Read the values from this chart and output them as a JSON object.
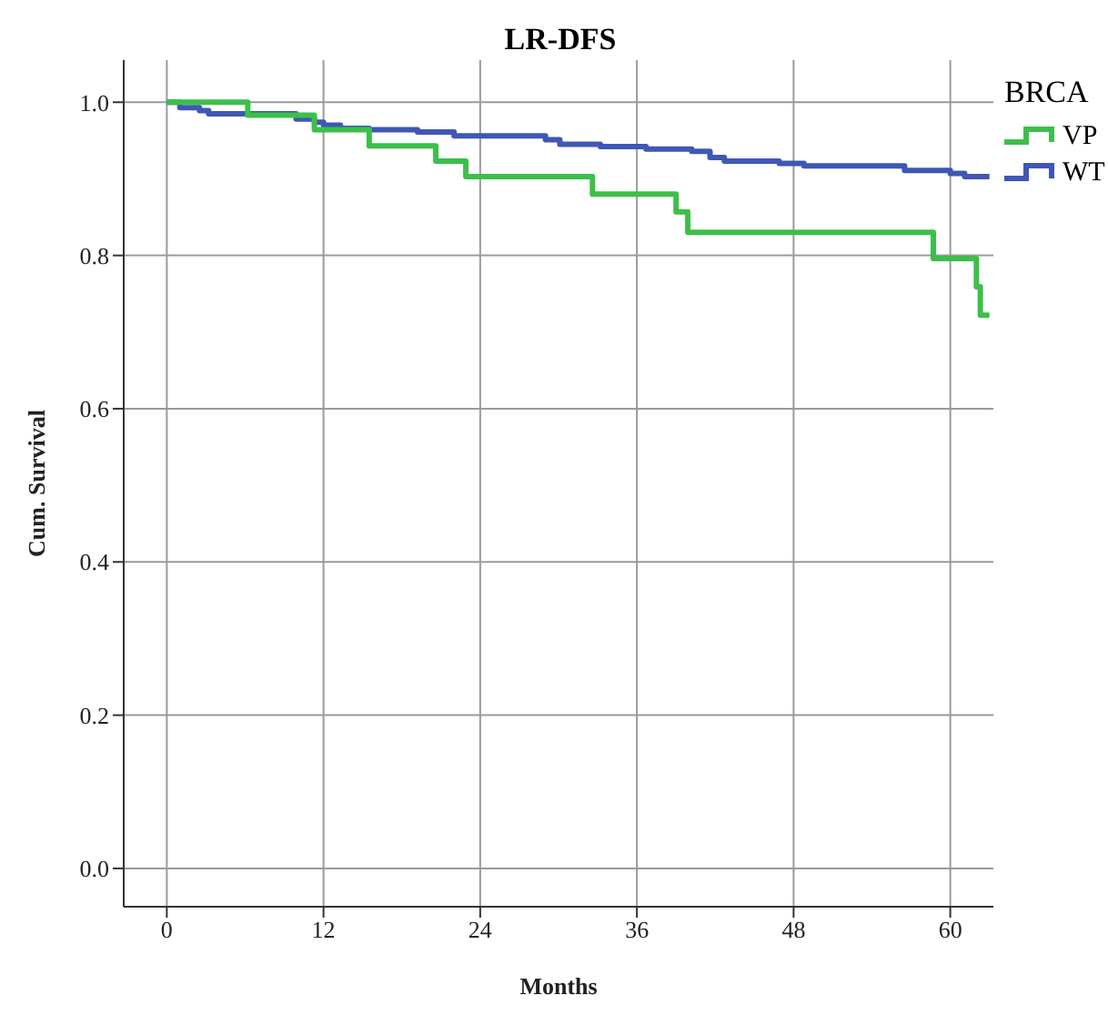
{
  "chart_data": {
    "type": "step",
    "title": "LR-DFS",
    "xlabel": "Months",
    "ylabel": "Cum. Survival",
    "legend_title": "BRCA",
    "legend": "top right",
    "grid": true,
    "line_style": "solid",
    "marker": "none",
    "xlim": [
      -3.3,
      63.3
    ],
    "xticks": [
      0,
      12,
      24,
      36,
      48,
      60
    ],
    "ylim": [
      -0.05,
      1.055
    ],
    "yticks": [
      {
        "value": 0,
        "label": "0.0"
      },
      {
        "value": 0.2,
        "label": "0.2"
      },
      {
        "value": 0.4,
        "label": "0.4"
      },
      {
        "value": 0.6,
        "label": "0.6"
      },
      {
        "value": 0.8,
        "label": "0.8"
      },
      {
        "value": 1,
        "label": "1.0"
      }
    ],
    "series": [
      {
        "name": "WT",
        "color": "#3f57b5",
        "x": [
          0,
          1,
          2.5,
          3.2,
          9.9,
          11.3,
          12,
          13.3,
          15.5,
          19.2,
          22,
          29,
          30.1,
          33.2,
          36.7,
          40.2,
          41.6,
          42.7,
          46.9,
          48.8,
          56.5,
          60,
          61.1,
          63
        ],
        "values": [
          1,
          0.993,
          0.989,
          0.985,
          0.978,
          0.974,
          0.97,
          0.966,
          0.964,
          0.961,
          0.956,
          0.951,
          0.945,
          0.942,
          0.939,
          0.936,
          0.928,
          0.923,
          0.92,
          0.917,
          0.911,
          0.907,
          0.903,
          0.903
        ]
      },
      {
        "name": "VP",
        "color": "#3cbf4a",
        "x": [
          0,
          6.2,
          11.3,
          15.5,
          20.6,
          22.9,
          32.6,
          39,
          39.9,
          58.7,
          62,
          62.3,
          63
        ],
        "values": [
          1,
          0.983,
          0.964,
          0.943,
          0.923,
          0.903,
          0.88,
          0.857,
          0.83,
          0.796,
          0.759,
          0.722,
          0.722
        ]
      }
    ]
  }
}
